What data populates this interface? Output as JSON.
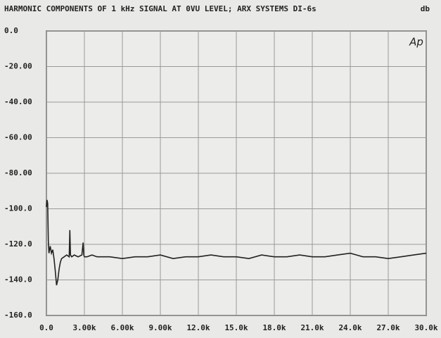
{
  "chart_data": {
    "type": "line",
    "title": "HARMONIC COMPONENTS OF 1 kHz SIGNAL AT 0VU LEVEL; ARX SYSTEMS DI-6s",
    "y_unit": "db",
    "annotation": "Ap",
    "x": [
      0,
      50,
      100,
      150,
      200,
      300,
      400,
      500,
      600,
      700,
      800,
      900,
      1000,
      1100,
      1200,
      1400,
      1600,
      1800,
      1850,
      1900,
      2000,
      2200,
      2500,
      2800,
      2900,
      2950,
      3000,
      3200,
      3600,
      4000,
      5000,
      6000,
      7000,
      8000,
      9000,
      10000,
      11000,
      12000,
      13000,
      14000,
      15000,
      16000,
      17000,
      18000,
      19000,
      20000,
      21000,
      22000,
      23000,
      24000,
      25000,
      26000,
      27000,
      28000,
      29000,
      30000
    ],
    "series": [
      {
        "color": "#222222",
        "values": [
          -99,
          -95,
          -97,
          -118,
          -125,
          -121,
          -125,
          -123,
          -128,
          -135,
          -143,
          -140,
          -134,
          -130,
          -128,
          -127,
          -126,
          -127,
          -112,
          -126,
          -127,
          -126,
          -127,
          -126,
          -119,
          -126,
          -127,
          -127,
          -126,
          -127,
          -127,
          -128,
          -127,
          -127,
          -126,
          -128,
          -127,
          -127,
          -126,
          -127,
          -127,
          -128,
          -126,
          -127,
          -127,
          -126,
          -127,
          -127,
          -126,
          -125,
          -127,
          -127,
          -128,
          -127,
          -126,
          -125
        ]
      }
    ],
    "xlim": [
      0,
      30000
    ],
    "xticks": [
      {
        "value": 0,
        "label": "0.0"
      },
      {
        "value": 3000,
        "label": "3.00k"
      },
      {
        "value": 6000,
        "label": "6.00k"
      },
      {
        "value": 9000,
        "label": "9.00k"
      },
      {
        "value": 12000,
        "label": "12.0k"
      },
      {
        "value": 15000,
        "label": "15.0k"
      },
      {
        "value": 18000,
        "label": "18.0k"
      },
      {
        "value": 21000,
        "label": "21.0k"
      },
      {
        "value": 24000,
        "label": "24.0k"
      },
      {
        "value": 27000,
        "label": "27.0k"
      },
      {
        "value": 30000,
        "label": "30.0k"
      }
    ],
    "ylim": [
      -160,
      0
    ],
    "yticks": [
      {
        "value": 0,
        "label": "0.0"
      },
      {
        "value": -20,
        "label": "-20.00"
      },
      {
        "value": -40,
        "label": "-40.00"
      },
      {
        "value": -60,
        "label": "-60.00"
      },
      {
        "value": -80,
        "label": "-80.00"
      },
      {
        "value": -100,
        "label": "-100.0"
      },
      {
        "value": -120,
        "label": "-120.0"
      },
      {
        "value": -140,
        "label": "-140.0"
      },
      {
        "value": -160,
        "label": "-160.0"
      }
    ],
    "grid": true
  }
}
